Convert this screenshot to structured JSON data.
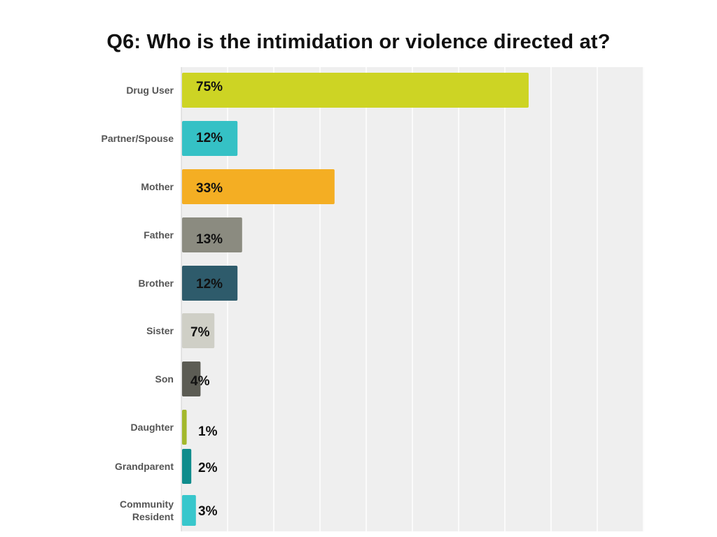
{
  "chart_data": {
    "type": "bar",
    "orientation": "horizontal",
    "title": "Q6: Who is the intimidation or violence directed at?",
    "categories": [
      "Drug User",
      "Partner/Spouse",
      "Mother",
      "Father",
      "Brother",
      "Sister",
      "Son",
      "Daughter",
      "Grandparent",
      "Community Resident"
    ],
    "values": [
      75,
      12,
      33,
      13,
      12,
      7,
      4,
      1,
      2,
      3
    ],
    "value_labels": [
      "75%",
      "12%",
      "33%",
      "13%",
      "12%",
      "7%",
      "4%",
      "1%",
      "2%",
      "3%"
    ],
    "colors": [
      "#cdd424",
      "#35c1c5",
      "#f4ae23",
      "#8b8b80",
      "#2e5b6b",
      "#cfcfc6",
      "#5c5c54",
      "#a3b82c",
      "#0f8c8c",
      "#38c7cc"
    ],
    "xlim": [
      0,
      100
    ],
    "xlabel": "",
    "ylabel": "",
    "grid": true,
    "legend": "none"
  }
}
